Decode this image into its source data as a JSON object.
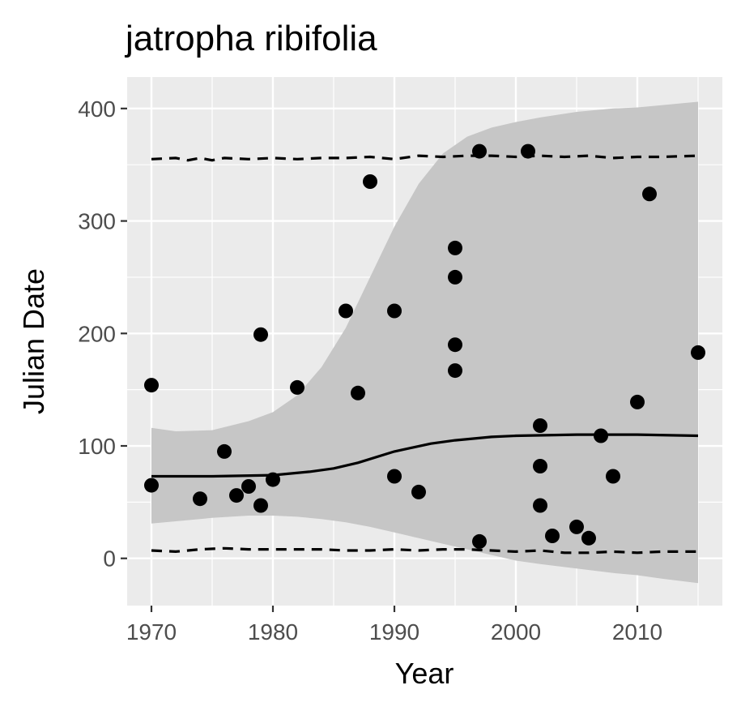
{
  "chart_data": {
    "type": "scatter",
    "title": "jatropha ribifolia",
    "xlabel": "Year",
    "ylabel": "Julian Date",
    "xlim": [
      1968,
      2017
    ],
    "ylim": [
      -42,
      428
    ],
    "x_ticks": [
      1970,
      1980,
      1990,
      2000,
      2010
    ],
    "y_ticks": [
      0,
      100,
      200,
      300,
      400
    ],
    "grid": true,
    "legend": "none",
    "colors": {
      "panel_background": "#ebebeb",
      "grid": "#ffffff",
      "points": "#000000",
      "ribbon": "#c6c6c6",
      "fit_line": "#000000",
      "bounds": "#000000"
    },
    "series": [
      {
        "kind": "points",
        "x": [
          1970,
          1970,
          1974,
          1976,
          1977,
          1978,
          1979,
          1979,
          1980,
          1982,
          1986,
          1987,
          1988,
          1990,
          1990,
          1992,
          1995,
          1995,
          1995,
          1995,
          1997,
          1997,
          2001,
          2002,
          2002,
          2002,
          2003,
          2005,
          2006,
          2007,
          2008,
          2010,
          2011,
          2015
        ],
        "y": [
          154,
          65,
          53,
          95,
          56,
          64,
          47,
          199,
          70,
          152,
          220,
          147,
          335,
          220,
          73,
          59,
          276,
          250,
          190,
          167,
          362,
          15,
          362,
          118,
          82,
          47,
          20,
          28,
          18,
          109,
          73,
          139,
          324,
          183
        ]
      },
      {
        "kind": "fit",
        "x": [
          1970,
          1975,
          1980,
          1983,
          1985,
          1987,
          1990,
          1993,
          1995,
          1998,
          2000,
          2005,
          2010,
          2015
        ],
        "y": [
          73,
          73,
          74,
          77,
          80,
          85,
          95,
          102,
          105,
          108,
          109,
          110,
          110,
          109
        ]
      },
      {
        "kind": "ribbon",
        "x": [
          1970,
          1972,
          1975,
          1978,
          1980,
          1982,
          1984,
          1986,
          1988,
          1990,
          1992,
          1994,
          1996,
          1998,
          2000,
          2002,
          2005,
          2008,
          2010,
          2012,
          2015
        ],
        "upper": [
          116,
          113,
          114,
          122,
          130,
          145,
          170,
          205,
          250,
          295,
          333,
          360,
          375,
          383,
          388,
          392,
          397,
          400,
          401,
          403,
          406
        ],
        "lower": [
          31,
          33,
          36,
          38,
          38,
          37,
          35,
          32,
          28,
          23,
          18,
          13,
          8,
          3,
          -2,
          -5,
          -9,
          -13,
          -15,
          -18,
          -22
        ]
      },
      {
        "kind": "upper_bound",
        "x": [
          1970,
          1972,
          1973,
          1974,
          1975,
          1976,
          1978,
          1980,
          1982,
          1984,
          1986,
          1988,
          1990,
          1992,
          1994,
          1996,
          1998,
          2000,
          2002,
          2004,
          2006,
          2008,
          2010,
          2012,
          2015
        ],
        "y": [
          355,
          356,
          354,
          356,
          354,
          356,
          355,
          356,
          355,
          356,
          356,
          357,
          355,
          358,
          357,
          358,
          358,
          357,
          358,
          357,
          358,
          356,
          357,
          357,
          358
        ]
      },
      {
        "kind": "lower_bound",
        "x": [
          1970,
          1972,
          1974,
          1976,
          1978,
          1980,
          1982,
          1984,
          1986,
          1988,
          1990,
          1992,
          1994,
          1996,
          1998,
          2000,
          2002,
          2004,
          2006,
          2008,
          2010,
          2012,
          2015
        ],
        "y": [
          7,
          6,
          8,
          9,
          8,
          8,
          8,
          8,
          7,
          7,
          8,
          7,
          8,
          8,
          7,
          6,
          7,
          5,
          5,
          6,
          5,
          6,
          6
        ]
      }
    ]
  }
}
